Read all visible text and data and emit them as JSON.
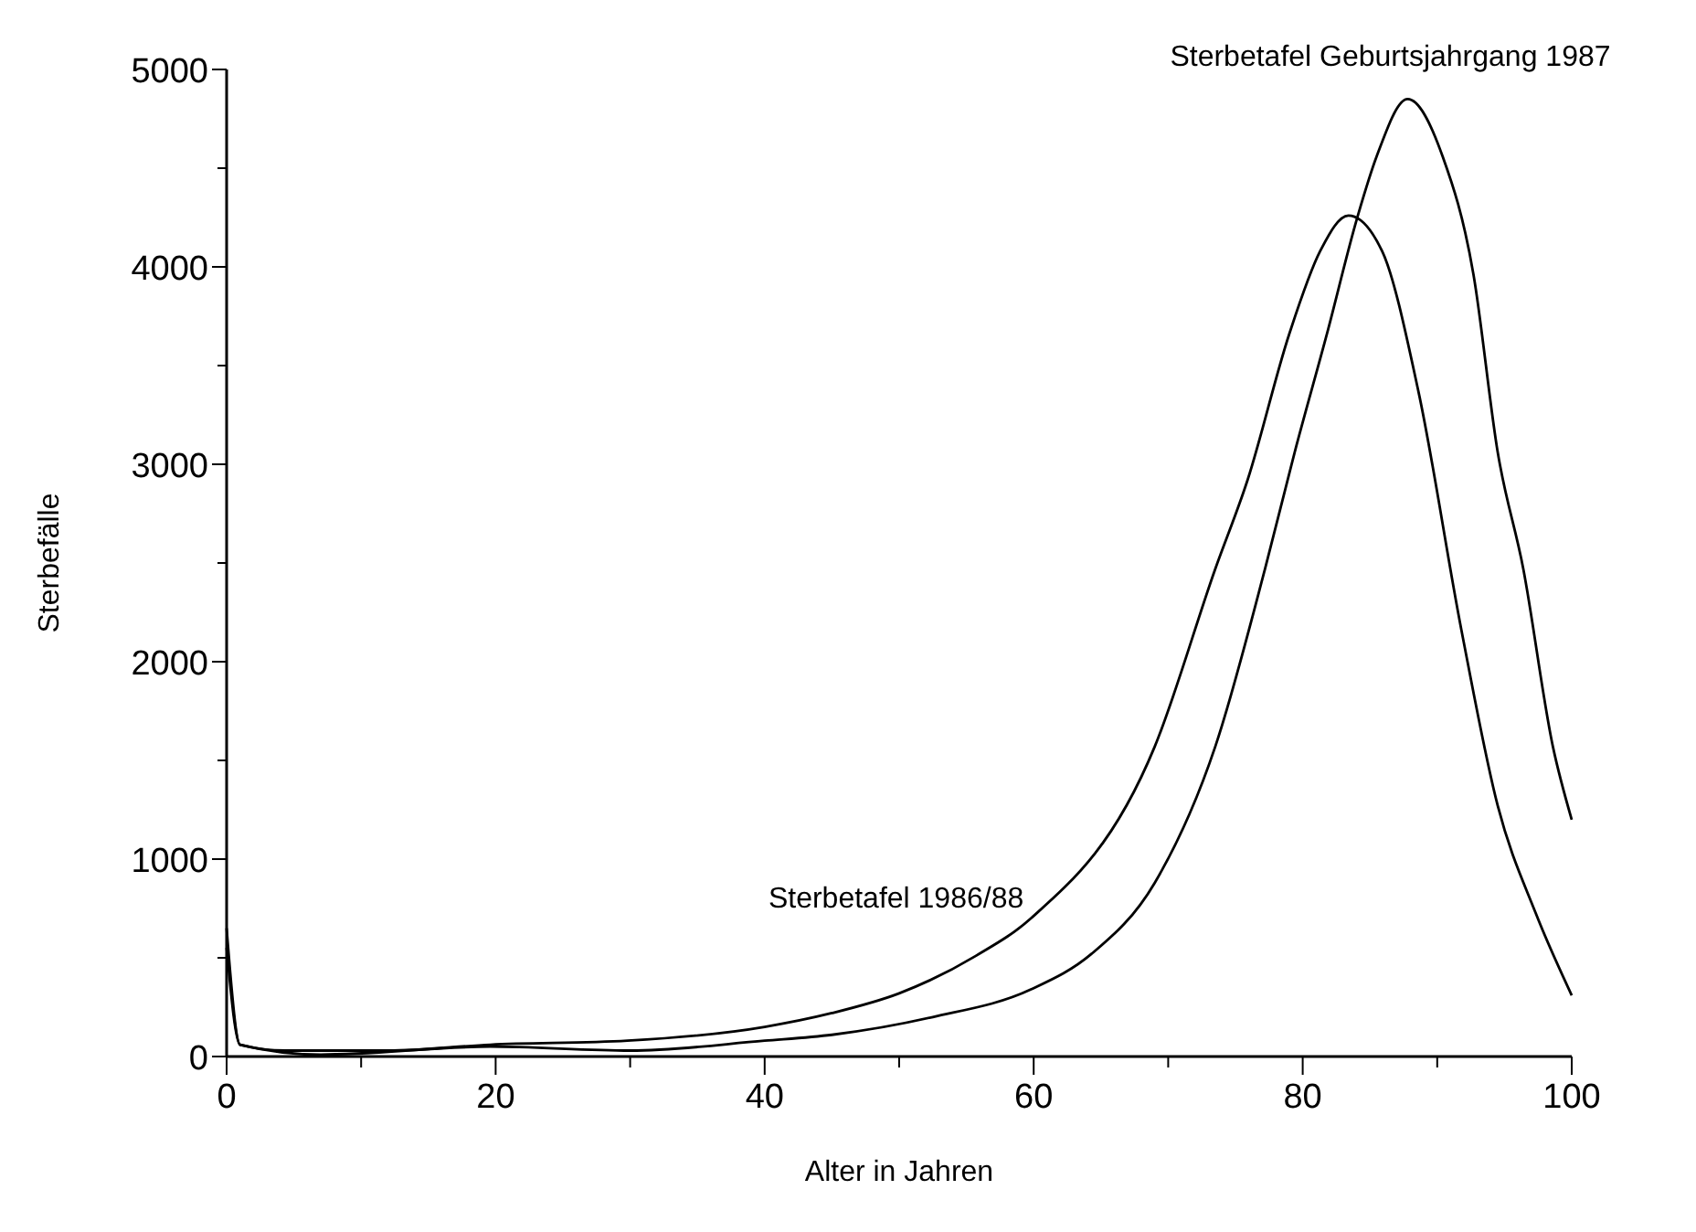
{
  "chart_data": {
    "type": "line",
    "xlabel": "Alter in Jahren",
    "ylabel": "Sterbefälle",
    "xlim": [
      0,
      100
    ],
    "ylim": [
      0,
      5000
    ],
    "xticks": [
      0,
      {
        "value": 10,
        "label": null
      },
      20,
      {
        "value": 30,
        "label": null
      },
      40,
      {
        "value": 50,
        "label": null
      },
      60,
      {
        "value": 70,
        "label": null
      },
      80,
      {
        "value": 90,
        "label": null
      },
      100
    ],
    "yticks": [
      0,
      {
        "value": 500,
        "label": null
      },
      1000,
      {
        "value": 1500,
        "label": null
      },
      2000,
      {
        "value": 2500,
        "label": null
      },
      3000,
      {
        "value": 3500,
        "label": null
      },
      4000,
      {
        "value": 4500,
        "label": null
      },
      5000
    ],
    "grid": false,
    "marker": "none",
    "line_style": "solid",
    "series": [
      {
        "name": "Sterbetafel 1986/88",
        "color": "#000000",
        "x": [
          0,
          1,
          4.4,
          12,
          19.6,
          29.8,
          40,
          45,
          50,
          55.7,
          59.8,
          69,
          73.5,
          75.9,
          79,
          81.3,
          83.4,
          85.9,
          88.6,
          91.8,
          94.5,
          97.3,
          100
        ],
        "values": [
          550,
          60,
          30,
          30,
          60,
          80,
          150,
          220,
          320,
          510,
          700,
          1570,
          2470,
          2920,
          3660,
          4080,
          4260,
          4080,
          3370,
          2160,
          1270,
          730,
          310
        ]
      },
      {
        "name": "Sterbetafel Geburtsjahrgang 1987",
        "color": "#000000",
        "x": [
          0,
          1,
          7,
          19.6,
          30,
          40,
          45,
          52.5,
          59.8,
          64.3,
          69,
          73.5,
          77.2,
          79.4,
          81.8,
          84.1,
          85.5,
          87.8,
          90.4,
          92.7,
          94.5,
          96.4,
          98.6,
          100
        ],
        "values": [
          650,
          60,
          10,
          50,
          30,
          80,
          110,
          200,
          340,
          520,
          880,
          1570,
          2470,
          3060,
          3660,
          4260,
          4560,
          4850,
          4560,
          3960,
          3060,
          2470,
          1570,
          1200
        ]
      }
    ]
  }
}
